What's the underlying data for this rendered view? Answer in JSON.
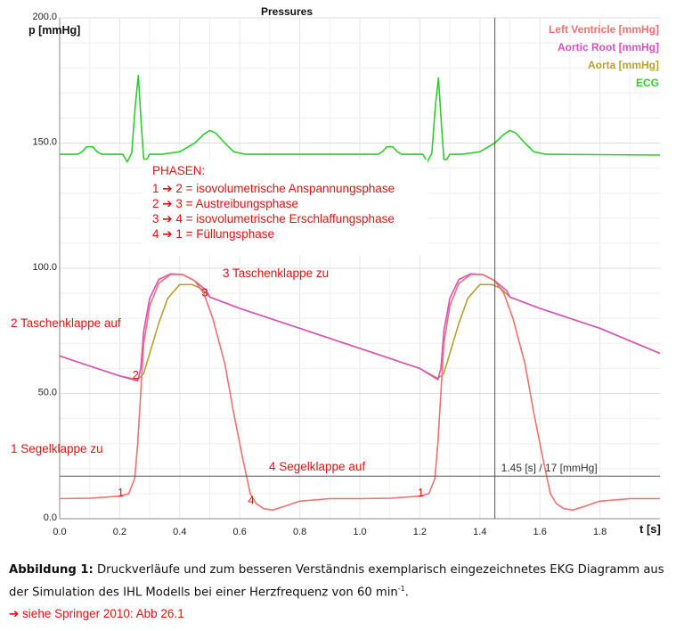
{
  "colors": {
    "left_ventricle": "#f26f6f",
    "aortic_root": "#d94fc0",
    "aorta": "#b9a030",
    "ecg": "#2ecc2e",
    "annotation": "#e41010",
    "grid": "#e6e6e6"
  },
  "chart_data": {
    "type": "line",
    "title": "Pressures",
    "ylabel": "p [mmHg]",
    "xlabel": "t [s]",
    "xlim": [
      0.0,
      2.0
    ],
    "ylim": [
      0.0,
      200.0
    ],
    "x_ticks": [
      "0.0",
      "0.2",
      "0.4",
      "0.6",
      "0.8",
      "1.0",
      "1.2",
      "1.4",
      "1.6",
      "1.8"
    ],
    "y_ticks": [
      {
        "value": 0,
        "label": "0.0"
      },
      {
        "value": 50,
        "label": "50.0"
      },
      {
        "value": 100,
        "label": "100.0"
      },
      {
        "value": 150,
        "label": "150.0"
      },
      {
        "value": 200,
        "label": "200.0"
      }
    ],
    "legend_position": "top-right",
    "grid": true,
    "series": [
      {
        "name": "Left Ventricle [mmHg]",
        "color": "#f26f6f",
        "points": [
          [
            0.0,
            8
          ],
          [
            0.1,
            8.2
          ],
          [
            0.2,
            9
          ],
          [
            0.23,
            10
          ],
          [
            0.25,
            16
          ],
          [
            0.26,
            30
          ],
          [
            0.27,
            50
          ],
          [
            0.28,
            70
          ],
          [
            0.3,
            85
          ],
          [
            0.33,
            94
          ],
          [
            0.37,
            97.5
          ],
          [
            0.41,
            97.5
          ],
          [
            0.45,
            95
          ],
          [
            0.48,
            90
          ],
          [
            0.51,
            80
          ],
          [
            0.55,
            62
          ],
          [
            0.58,
            42
          ],
          [
            0.61,
            24
          ],
          [
            0.635,
            10
          ],
          [
            0.655,
            6
          ],
          [
            0.68,
            4
          ],
          [
            0.71,
            3.5
          ],
          [
            0.75,
            5
          ],
          [
            0.8,
            7
          ],
          [
            0.9,
            8
          ],
          [
            1.0,
            8
          ],
          [
            1.1,
            8.2
          ],
          [
            1.2,
            9
          ],
          [
            1.23,
            10
          ],
          [
            1.25,
            16
          ],
          [
            1.26,
            30
          ],
          [
            1.27,
            50
          ],
          [
            1.28,
            70
          ],
          [
            1.3,
            85
          ],
          [
            1.33,
            94
          ],
          [
            1.37,
            97.5
          ],
          [
            1.41,
            97.5
          ],
          [
            1.45,
            95
          ],
          [
            1.48,
            90
          ],
          [
            1.51,
            80
          ],
          [
            1.55,
            62
          ],
          [
            1.58,
            42
          ],
          [
            1.61,
            24
          ],
          [
            1.635,
            10
          ],
          [
            1.655,
            6
          ],
          [
            1.68,
            4
          ],
          [
            1.71,
            3.5
          ],
          [
            1.75,
            5
          ],
          [
            1.8,
            7
          ],
          [
            1.9,
            8
          ],
          [
            2.0,
            8
          ]
        ]
      },
      {
        "name": "Aortic Root [mmHg]",
        "color": "#d94fc0",
        "points": [
          [
            0.0,
            65
          ],
          [
            0.1,
            61
          ],
          [
            0.2,
            57
          ],
          [
            0.26,
            55
          ],
          [
            0.27,
            60
          ],
          [
            0.28,
            75
          ],
          [
            0.3,
            88
          ],
          [
            0.33,
            95.5
          ],
          [
            0.37,
            97.8
          ],
          [
            0.41,
            97.5
          ],
          [
            0.45,
            95
          ],
          [
            0.49,
            91
          ],
          [
            0.5,
            88.5
          ],
          [
            0.6,
            84
          ],
          [
            0.8,
            76
          ],
          [
            1.0,
            68
          ],
          [
            1.2,
            60
          ],
          [
            1.26,
            55.5
          ],
          [
            1.27,
            60
          ],
          [
            1.28,
            75
          ],
          [
            1.3,
            88
          ],
          [
            1.33,
            95.5
          ],
          [
            1.37,
            97.8
          ],
          [
            1.41,
            97.5
          ],
          [
            1.45,
            95
          ],
          [
            1.49,
            91
          ],
          [
            1.5,
            88.5
          ],
          [
            1.6,
            84
          ],
          [
            1.8,
            76
          ],
          [
            2.0,
            66
          ]
        ]
      },
      {
        "name": "Aorta [mmHg]",
        "color": "#b9a030",
        "points": [
          [
            0.0,
            65
          ],
          [
            0.1,
            61
          ],
          [
            0.2,
            57
          ],
          [
            0.26,
            55.5
          ],
          [
            0.28,
            58
          ],
          [
            0.3,
            66
          ],
          [
            0.33,
            78
          ],
          [
            0.36,
            88
          ],
          [
            0.4,
            93.5
          ],
          [
            0.44,
            93.5
          ],
          [
            0.47,
            92
          ],
          [
            0.5,
            88.5
          ],
          [
            0.6,
            84
          ],
          [
            0.8,
            76
          ],
          [
            1.0,
            68
          ],
          [
            1.2,
            60
          ],
          [
            1.26,
            56
          ],
          [
            1.28,
            58
          ],
          [
            1.3,
            66
          ],
          [
            1.33,
            78
          ],
          [
            1.36,
            88
          ],
          [
            1.4,
            93.5
          ],
          [
            1.44,
            93.5
          ],
          [
            1.47,
            92
          ],
          [
            1.5,
            88.5
          ],
          [
            1.6,
            84
          ],
          [
            1.8,
            76
          ],
          [
            2.0,
            66
          ]
        ]
      },
      {
        "name": "ECG",
        "color": "#2ecc2e",
        "points": [
          [
            0.0,
            145.5
          ],
          [
            0.06,
            145.5
          ],
          [
            0.075,
            146.5
          ],
          [
            0.09,
            148.5
          ],
          [
            0.11,
            148.5
          ],
          [
            0.125,
            146.5
          ],
          [
            0.14,
            145.5
          ],
          [
            0.21,
            145.5
          ],
          [
            0.225,
            142.5
          ],
          [
            0.24,
            146
          ],
          [
            0.252,
            165
          ],
          [
            0.262,
            177
          ],
          [
            0.272,
            157
          ],
          [
            0.28,
            143.5
          ],
          [
            0.29,
            143.5
          ],
          [
            0.3,
            145.5
          ],
          [
            0.34,
            145.5
          ],
          [
            0.4,
            146.5
          ],
          [
            0.45,
            150
          ],
          [
            0.48,
            153.5
          ],
          [
            0.5,
            155
          ],
          [
            0.52,
            154
          ],
          [
            0.55,
            150
          ],
          [
            0.58,
            146.5
          ],
          [
            0.62,
            145.5
          ],
          [
            0.9,
            145.5
          ],
          [
            1.06,
            145.5
          ],
          [
            1.075,
            146.5
          ],
          [
            1.09,
            148.5
          ],
          [
            1.11,
            148.5
          ],
          [
            1.125,
            146.5
          ],
          [
            1.14,
            145.5
          ],
          [
            1.21,
            145.5
          ],
          [
            1.225,
            142.5
          ],
          [
            1.24,
            146
          ],
          [
            1.252,
            165
          ],
          [
            1.262,
            176
          ],
          [
            1.272,
            157
          ],
          [
            1.28,
            143.5
          ],
          [
            1.29,
            143.5
          ],
          [
            1.3,
            145.5
          ],
          [
            1.34,
            145.5
          ],
          [
            1.4,
            146.5
          ],
          [
            1.45,
            150
          ],
          [
            1.48,
            153.5
          ],
          [
            1.5,
            155
          ],
          [
            1.52,
            154
          ],
          [
            1.55,
            150
          ],
          [
            1.58,
            146.5
          ],
          [
            1.62,
            145.5
          ],
          [
            2.0,
            145.2
          ]
        ]
      }
    ],
    "cursor": {
      "x": 1.45,
      "y": 17,
      "label": "1.45 [s] / 17 [mmHg]"
    },
    "point_markers": [
      {
        "label": "1",
        "x": 0.215,
        "y": 11
      },
      {
        "label": "2",
        "x": 0.265,
        "y": 58
      },
      {
        "label": "3",
        "x": 0.495,
        "y": 91
      },
      {
        "label": "4",
        "x": 0.65,
        "y": 8
      },
      {
        "label": "1",
        "x": 1.215,
        "y": 11
      }
    ],
    "phases_box": {
      "heading": "PHASEN:",
      "lines": [
        "1 ➔ 2 = isovolumetrische Anspannungsphase",
        "2 ➔ 3 = Austreibungsphase",
        "3 ➔ 4 = isovolumetrische Erschlaffungsphase",
        "4 ➔ 1 = Füllungsphase"
      ]
    },
    "annotations": [
      {
        "key": "taschen_zu",
        "text": "3 Taschenklappe zu"
      },
      {
        "key": "taschen_auf",
        "text": "2 Taschenklappe auf"
      },
      {
        "key": "segel_zu",
        "text": "1 Segelklappe zu"
      },
      {
        "key": "segel_auf",
        "text": "4 Segelklappe auf"
      }
    ]
  },
  "caption": {
    "label": "Abbildung 1:",
    "text": " Druckverläufe und zum besseren Verständnis exemplarisch eingezeichnetes EKG Diagramm aus der Simulation des IHL Modells bei einer Herzfrequenz von 60 min",
    "superscript": "-1",
    "end": "."
  },
  "reference": "➔ siehe Springer 2010: Abb 26.1"
}
